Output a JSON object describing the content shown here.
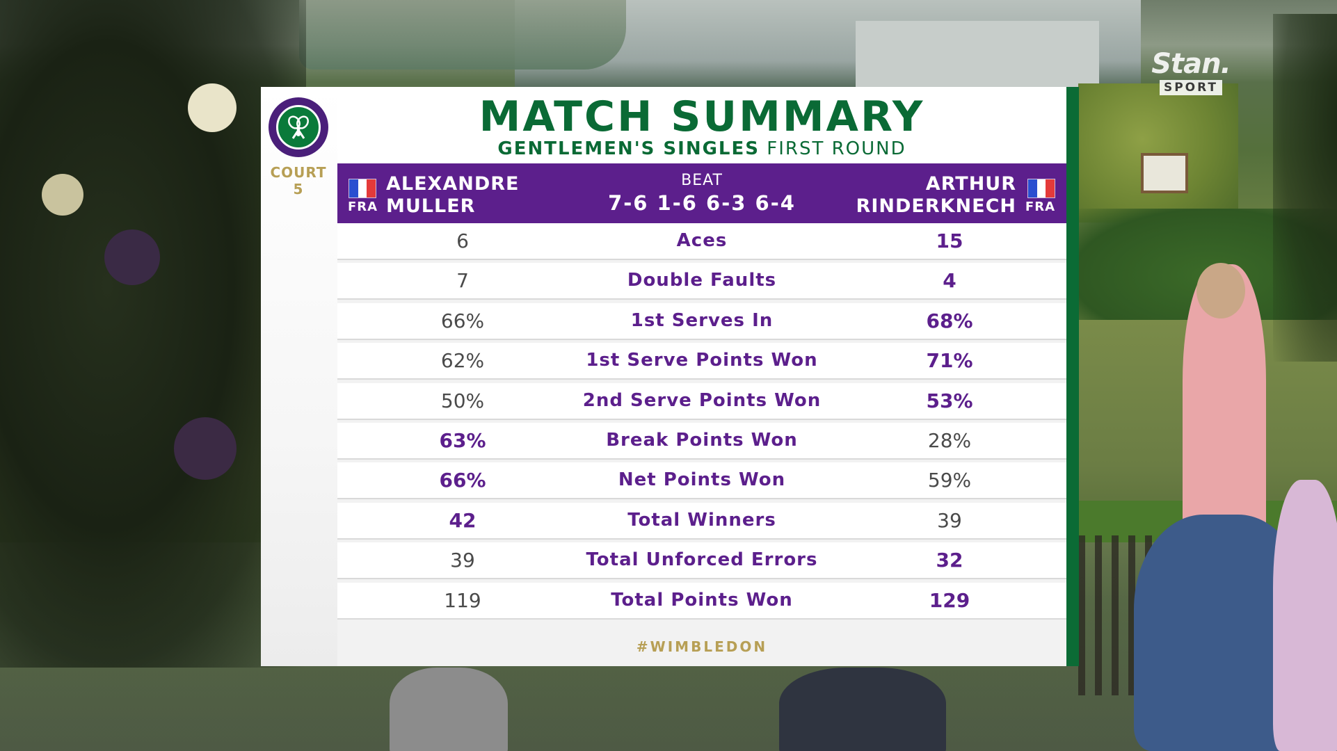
{
  "broadcaster": {
    "brand": "Stan.",
    "sub": "SPORT"
  },
  "logo_icon": "wimbledon-crossed-rackets-icon",
  "court": {
    "label": "COURT",
    "number": "5"
  },
  "title": "MATCH SUMMARY",
  "subtitle": {
    "bold": "GENTLEMEN'S SINGLES",
    "regular": "FIRST ROUND"
  },
  "match": {
    "left_player": {
      "nation": "FRA",
      "first": "ALEXANDRE",
      "last": "MULLER"
    },
    "right_player": {
      "nation": "FRA",
      "first": "ARTHUR",
      "last": "RINDERKNECH"
    },
    "result": "BEAT",
    "score": "7-6 1-6 6-3 6-4"
  },
  "stats": [
    {
      "label": "Aces",
      "left": "6",
      "right": "15",
      "leader": "right"
    },
    {
      "label": "Double Faults",
      "left": "7",
      "right": "4",
      "leader": "right"
    },
    {
      "label": "1st Serves In",
      "left": "66%",
      "right": "68%",
      "leader": "right"
    },
    {
      "label": "1st Serve Points Won",
      "left": "62%",
      "right": "71%",
      "leader": "right"
    },
    {
      "label": "2nd Serve Points Won",
      "left": "50%",
      "right": "53%",
      "leader": "right"
    },
    {
      "label": "Break Points Won",
      "left": "63%",
      "right": "28%",
      "leader": "left"
    },
    {
      "label": "Net Points Won",
      "left": "66%",
      "right": "59%",
      "leader": "left"
    },
    {
      "label": "Total Winners",
      "left": "42",
      "right": "39",
      "leader": "left"
    },
    {
      "label": "Total Unforced Errors",
      "left": "39",
      "right": "32",
      "leader": "right"
    },
    {
      "label": "Total Points Won",
      "left": "119",
      "right": "129",
      "leader": "right"
    }
  ],
  "hashtag": "#WIMBLEDON",
  "colors": {
    "purple": "#5c1f8c",
    "green": "#0a6a35",
    "gold": "#b79f55"
  }
}
